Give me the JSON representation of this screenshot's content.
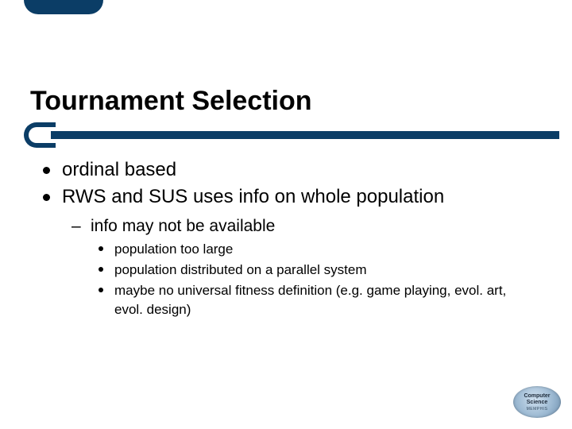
{
  "colors": {
    "accent": "#0b3d66",
    "text": "#000000",
    "background": "#ffffff"
  },
  "typography": {
    "title_fontsize": 34,
    "level1_fontsize": 24,
    "level2_fontsize": 21,
    "level3_fontsize": 17,
    "family": "Arial"
  },
  "title": "Tournament Selection",
  "bullets": {
    "level1": [
      "ordinal based",
      "RWS and SUS uses info on whole population"
    ],
    "level2": [
      "info may not be available"
    ],
    "level3": [
      "population too large",
      "population distributed on a parallel system",
      "maybe no universal fitness definition (e.g. game playing, evol. art, evol. design)"
    ]
  },
  "logo": {
    "line1": "Computer",
    "line2": "Science",
    "line3": "MEMPHIS"
  }
}
